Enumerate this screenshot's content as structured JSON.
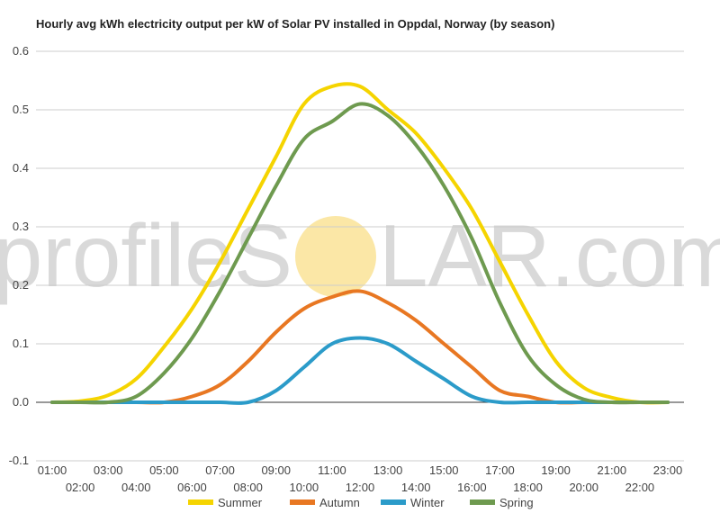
{
  "chart_data": {
    "type": "line",
    "title": "Hourly avg kWh electricity output per kW of Solar PV installed in Oppdal, Norway (by season)",
    "xlabel": "",
    "ylabel": "",
    "ylim": [
      -0.1,
      0.6
    ],
    "yticks": [
      "-0.1",
      "0.0",
      "0.1",
      "0.2",
      "0.3",
      "0.4",
      "0.5",
      "0.6"
    ],
    "categories": [
      "01:00",
      "02:00",
      "03:00",
      "04:00",
      "05:00",
      "06:00",
      "07:00",
      "08:00",
      "09:00",
      "10:00",
      "11:00",
      "12:00",
      "13:00",
      "14:00",
      "15:00",
      "16:00",
      "17:00",
      "18:00",
      "19:00",
      "20:00",
      "21:00",
      "22:00",
      "23:00"
    ],
    "legend_position": "bottom",
    "grid": true,
    "series": [
      {
        "name": "Summer",
        "color": "#f5d400",
        "values": [
          0,
          0.002,
          0.012,
          0.04,
          0.095,
          0.16,
          0.24,
          0.33,
          0.42,
          0.51,
          0.54,
          0.54,
          0.5,
          0.46,
          0.4,
          0.33,
          0.24,
          0.15,
          0.07,
          0.025,
          0.008,
          0,
          0
        ]
      },
      {
        "name": "Autumn",
        "color": "#e87722",
        "values": [
          0,
          0,
          0,
          0,
          0,
          0.01,
          0.03,
          0.07,
          0.12,
          0.16,
          0.18,
          0.19,
          0.17,
          0.14,
          0.1,
          0.06,
          0.02,
          0.01,
          0,
          0,
          0,
          0,
          0
        ]
      },
      {
        "name": "Winter",
        "color": "#2b9bc9",
        "values": [
          0,
          0,
          0,
          0,
          0,
          0,
          0,
          0,
          0.02,
          0.06,
          0.1,
          0.11,
          0.1,
          0.07,
          0.04,
          0.01,
          0,
          0,
          0,
          0,
          0,
          0,
          0
        ]
      },
      {
        "name": "Spring",
        "color": "#6e9a4f",
        "values": [
          0,
          0,
          0,
          0.01,
          0.05,
          0.11,
          0.19,
          0.28,
          0.37,
          0.45,
          0.48,
          0.51,
          0.49,
          0.44,
          0.37,
          0.28,
          0.17,
          0.08,
          0.03,
          0.005,
          0,
          0,
          0
        ]
      }
    ]
  },
  "watermark": {
    "left": "profileS",
    "right": "LAR.com",
    "sun_color": "#fbe7a6"
  }
}
